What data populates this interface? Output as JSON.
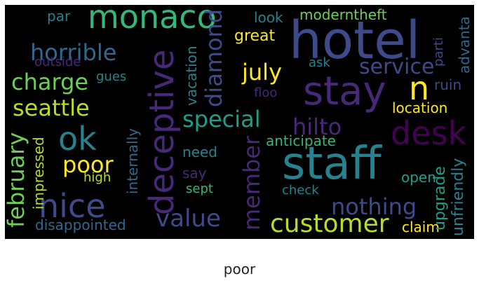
{
  "caption": "poor",
  "palette": {
    "purple": "#482878",
    "indigo": "#3e4a89",
    "blue": "#31688e",
    "teal": "#26828e",
    "green": "#1f9e89",
    "lightgreen": "#35b779",
    "lime": "#6ece58",
    "yellowgreen": "#b5de2b",
    "yellow": "#fde725",
    "darkpurple": "#440154"
  },
  "words": [
    {
      "text": "hotel"
    },
    {
      "text": "staff"
    },
    {
      "text": "stay"
    },
    {
      "text": "deceptive"
    },
    {
      "text": "monaco"
    },
    {
      "text": "desk"
    },
    {
      "text": "nice"
    },
    {
      "text": "ok"
    },
    {
      "text": "n"
    },
    {
      "text": "customer"
    },
    {
      "text": "february"
    },
    {
      "text": "value"
    },
    {
      "text": "horrible"
    },
    {
      "text": "charge"
    },
    {
      "text": "seattle"
    },
    {
      "text": "special"
    },
    {
      "text": "nothing"
    },
    {
      "text": "diamond"
    },
    {
      "text": "member"
    },
    {
      "text": "poor"
    },
    {
      "text": "hilto"
    },
    {
      "text": "july"
    },
    {
      "text": "service"
    },
    {
      "text": "disappointed"
    },
    {
      "text": "upgrade"
    },
    {
      "text": "unfriendly"
    },
    {
      "text": "location"
    },
    {
      "text": "anticipate"
    },
    {
      "text": "great"
    },
    {
      "text": "look"
    },
    {
      "text": "moderntheft"
    },
    {
      "text": "par"
    },
    {
      "text": "outside"
    },
    {
      "text": "gues"
    },
    {
      "text": "ask"
    },
    {
      "text": "floo"
    },
    {
      "text": "ruin"
    },
    {
      "text": "parti"
    },
    {
      "text": "advanta"
    },
    {
      "text": "vacation"
    },
    {
      "text": "internally"
    },
    {
      "text": "impressed"
    },
    {
      "text": "high"
    },
    {
      "text": "need"
    },
    {
      "text": "say"
    },
    {
      "text": "sept"
    },
    {
      "text": "check"
    },
    {
      "text": "open"
    },
    {
      "text": "claim"
    }
  ]
}
